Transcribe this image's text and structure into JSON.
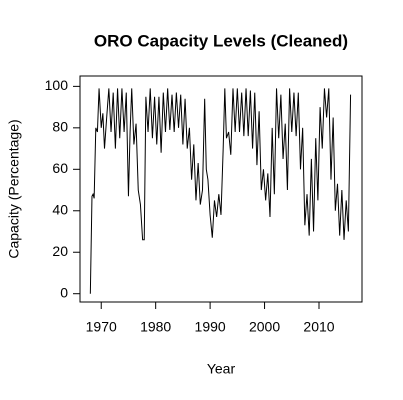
{
  "chart_data": {
    "type": "line",
    "title": "ORO Capacity Levels (Cleaned)",
    "x_label": "Year",
    "y_label": "Capacity (Percentage)",
    "color": "#000000",
    "xlim": [
      1966.1,
      2017.9
    ],
    "ylim": [
      -4,
      105
    ],
    "xticks": [
      1970,
      1980,
      1990,
      2000,
      2010
    ],
    "yticks": [
      0,
      20,
      40,
      60,
      80,
      100
    ],
    "x": [
      1968.0,
      1968.3,
      1968.5,
      1968.7,
      1969.0,
      1969.3,
      1969.6,
      1970.0,
      1970.3,
      1970.6,
      1971.0,
      1971.4,
      1971.8,
      1972.2,
      1972.6,
      1973.0,
      1973.4,
      1973.8,
      1974.2,
      1974.6,
      1975.0,
      1975.3,
      1975.6,
      1976.0,
      1976.4,
      1976.8,
      1977.2,
      1977.6,
      1977.9,
      1978.2,
      1978.6,
      1979.0,
      1979.4,
      1979.8,
      1980.2,
      1980.6,
      1981.0,
      1981.4,
      1981.8,
      1982.2,
      1982.6,
      1983.0,
      1983.4,
      1983.8,
      1984.2,
      1984.6,
      1985.0,
      1985.4,
      1985.8,
      1986.2,
      1986.6,
      1987.0,
      1987.4,
      1987.8,
      1988.2,
      1988.6,
      1989.0,
      1989.3,
      1989.6,
      1990.0,
      1990.4,
      1990.8,
      1991.2,
      1991.6,
      1992.0,
      1992.4,
      1992.7,
      1993.0,
      1993.4,
      1993.8,
      1994.2,
      1994.6,
      1995.0,
      1995.4,
      1995.8,
      1996.2,
      1996.6,
      1997.0,
      1997.4,
      1997.8,
      1998.2,
      1998.6,
      1999.0,
      1999.4,
      1999.8,
      2000.2,
      2000.6,
      2001.0,
      2001.4,
      2001.8,
      2002.2,
      2002.6,
      2003.0,
      2003.4,
      2003.8,
      2004.2,
      2004.6,
      2005.0,
      2005.4,
      2005.8,
      2006.2,
      2006.6,
      2007.0,
      2007.4,
      2007.8,
      2008.2,
      2008.6,
      2009.0,
      2009.4,
      2009.8,
      2010.2,
      2010.6,
      2011.0,
      2011.4,
      2011.8,
      2012.2,
      2012.6,
      2013.0,
      2013.4,
      2013.8,
      2014.2,
      2014.6,
      2015.0,
      2015.4,
      2015.8
    ],
    "values": [
      0,
      47,
      48,
      46,
      80,
      78,
      99,
      80,
      87,
      70,
      85,
      99,
      78,
      97,
      70,
      99,
      75,
      99,
      78,
      97,
      47,
      78,
      99,
      72,
      82,
      50,
      43,
      26,
      26,
      95,
      78,
      99,
      75,
      95,
      72,
      95,
      68,
      97,
      78,
      99,
      79,
      96,
      78,
      97,
      80,
      96,
      72,
      94,
      70,
      80,
      55,
      72,
      45,
      63,
      43,
      50,
      94,
      60,
      55,
      38,
      27,
      45,
      37,
      48,
      38,
      70,
      99,
      75,
      78,
      67,
      99,
      78,
      99,
      78,
      97,
      76,
      99,
      76,
      98,
      70,
      97,
      62,
      88,
      50,
      60,
      45,
      58,
      37,
      80,
      48,
      99,
      75,
      96,
      65,
      82,
      50,
      99,
      78,
      97,
      76,
      97,
      60,
      80,
      33,
      48,
      28,
      65,
      30,
      75,
      45,
      90,
      70,
      99,
      85,
      99,
      55,
      85,
      40,
      53,
      28,
      50,
      26,
      45,
      30,
      96
    ]
  }
}
